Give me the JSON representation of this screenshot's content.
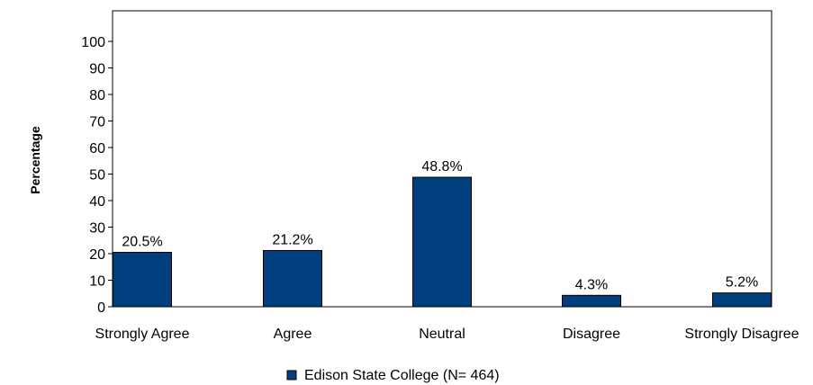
{
  "chart_data": {
    "type": "bar",
    "categories": [
      "Strongly Agree",
      "Agree",
      "Neutral",
      "Disagree",
      "Strongly Disagree"
    ],
    "series": [
      {
        "name": "Edison State College (N= 464)",
        "values": [
          20.5,
          21.2,
          48.8,
          4.3,
          5.2
        ],
        "labels": [
          "20.5%",
          "21.2%",
          "48.8%",
          "4.3%",
          "5.2%"
        ]
      }
    ],
    "ylabel": "Percentage",
    "xlabel": "",
    "ylim": [
      0,
      110
    ],
    "yticks": [
      0,
      10,
      20,
      30,
      40,
      50,
      60,
      70,
      80,
      90,
      100
    ],
    "legend_position": "bottom-center",
    "grid": false,
    "colors": {
      "bar": "#003f7d",
      "border": "#000000"
    }
  }
}
